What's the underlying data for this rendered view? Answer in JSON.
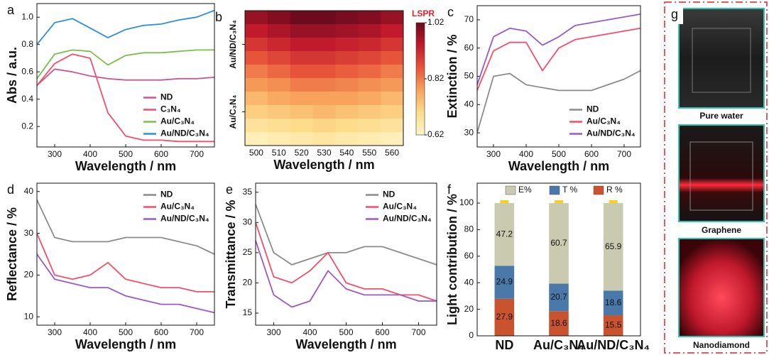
{
  "chart_data": [
    {
      "label": "a",
      "type": "line",
      "xlabel": "Wavelength / nm",
      "ylabel": "Abs / a.u.",
      "xlim": [
        250,
        750
      ],
      "xticks": [
        300,
        400,
        500,
        600,
        700
      ],
      "ylim": [
        0.05,
        1.1
      ],
      "yticks": [
        0.2,
        0.4,
        0.6,
        0.8,
        {
          "value": 1,
          "label": "1.0"
        }
      ],
      "legend": "lower right",
      "x": [
        250,
        300,
        350,
        400,
        450,
        500,
        550,
        600,
        650,
        700,
        750
      ],
      "series": [
        {
          "name": "ND",
          "color": "#c65a94",
          "values": [
            0.5,
            0.62,
            0.6,
            0.57,
            0.55,
            0.54,
            0.54,
            0.54,
            0.55,
            0.55,
            0.56
          ]
        },
        {
          "name": "C₃N₄",
          "color": "#f2506a",
          "values": [
            0.5,
            0.66,
            0.73,
            0.7,
            0.3,
            0.13,
            0.1,
            0.1,
            0.09,
            0.09,
            0.09
          ]
        },
        {
          "name": "Au/C₃N₄",
          "color": "#7bbf4a",
          "values": [
            0.55,
            0.73,
            0.76,
            0.75,
            0.65,
            0.72,
            0.74,
            0.74,
            0.75,
            0.76,
            0.76
          ]
        },
        {
          "name": "Au/ND/C₃N₄",
          "color": "#2e8ee0",
          "values": [
            0.8,
            0.96,
            0.99,
            0.92,
            0.85,
            0.91,
            0.94,
            0.95,
            0.98,
            1.0,
            1.05
          ]
        }
      ]
    },
    {
      "label": "b",
      "type": "heatmap",
      "xlabel": "Wavelength / nm",
      "xlim": [
        495,
        565
      ],
      "xticks": [
        500,
        510,
        520,
        530,
        540,
        550,
        560
      ],
      "x": [
        500,
        510,
        520,
        530,
        540,
        550,
        560
      ],
      "rows": [
        null,
        null,
        "Au/ND/C₃N₄",
        null,
        null,
        null,
        null,
        "Au/C₃N₄",
        null,
        null
      ],
      "z": [
        [
          0.98,
          1.0,
          1.02,
          1.02,
          1.01,
          1.0,
          0.98
        ],
        [
          0.94,
          0.96,
          0.98,
          0.98,
          0.97,
          0.96,
          0.94
        ],
        [
          0.9,
          0.92,
          0.94,
          0.94,
          0.93,
          0.92,
          0.9
        ],
        [
          0.86,
          0.88,
          0.9,
          0.9,
          0.89,
          0.88,
          0.86
        ],
        [
          0.82,
          0.84,
          0.86,
          0.86,
          0.85,
          0.84,
          0.82
        ],
        [
          0.79,
          0.8,
          0.82,
          0.82,
          0.81,
          0.8,
          0.79
        ],
        [
          0.75,
          0.77,
          0.78,
          0.78,
          0.78,
          0.77,
          0.75
        ],
        [
          0.72,
          0.73,
          0.74,
          0.75,
          0.74,
          0.73,
          0.72
        ],
        [
          0.68,
          0.69,
          0.7,
          0.71,
          0.7,
          0.69,
          0.68
        ],
        [
          0.64,
          0.65,
          0.66,
          0.67,
          0.66,
          0.65,
          0.64
        ]
      ],
      "colorbar": {
        "title": "LSPR",
        "lim": [
          0.62,
          1.02
        ],
        "ticks": [
          0.62,
          0.82,
          1.02
        ]
      }
    },
    {
      "label": "c",
      "type": "line",
      "xlabel": "Wavelength / nm",
      "ylabel": "Extinction / %",
      "xlim": [
        250,
        750
      ],
      "xticks": [
        300,
        400,
        500,
        600,
        700
      ],
      "ylim": [
        25,
        75
      ],
      "yticks": [
        30,
        40,
        50,
        60,
        70
      ],
      "legend": "lower right",
      "x": [
        250,
        300,
        350,
        400,
        450,
        500,
        550,
        600,
        650,
        700,
        750
      ],
      "series": [
        {
          "name": "ND",
          "color": "#8c8c8c",
          "values": [
            30,
            50,
            51,
            47,
            46,
            45,
            45,
            45,
            47,
            49,
            52
          ]
        },
        {
          "name": "Au/C₃N₄",
          "color": "#f2506a",
          "values": [
            45,
            59,
            62,
            62,
            52,
            60,
            63,
            64,
            65,
            66,
            67
          ]
        },
        {
          "name": "Au/ND/C₃N₄",
          "color": "#9b59c6",
          "values": [
            47,
            64,
            67,
            66,
            61,
            64,
            68,
            69,
            70,
            71,
            72
          ]
        }
      ]
    },
    {
      "label": "d",
      "type": "line",
      "xlabel": "Wavelength / nm",
      "ylabel": "Reflectance / %",
      "xlim": [
        250,
        750
      ],
      "xticks": [
        300,
        400,
        500,
        600,
        700
      ],
      "ylim": [
        8,
        42
      ],
      "yticks": [
        10,
        20,
        30,
        40
      ],
      "legend": "upper right",
      "x": [
        250,
        300,
        350,
        400,
        450,
        500,
        550,
        600,
        650,
        700,
        750
      ],
      "series": [
        {
          "name": "ND",
          "color": "#8c8c8c",
          "values": [
            38,
            29,
            28,
            28,
            28,
            29,
            29,
            29,
            28,
            27,
            25
          ]
        },
        {
          "name": "Au/C₃N₄",
          "color": "#f2506a",
          "values": [
            30,
            20,
            19,
            20,
            23,
            19,
            18,
            17,
            17,
            16,
            16
          ]
        },
        {
          "name": "Au/ND/C₃N₄",
          "color": "#9b59c6",
          "values": [
            25,
            19,
            18,
            17,
            17,
            15,
            14,
            13,
            13,
            12,
            11
          ]
        }
      ]
    },
    {
      "label": "e",
      "type": "line",
      "xlabel": "Wavelength / nm",
      "ylabel": "Transmittance / %",
      "xlim": [
        250,
        750
      ],
      "xticks": [
        300,
        400,
        500,
        600,
        700
      ],
      "ylim": [
        13,
        36.5
      ],
      "yticks": [
        15,
        20,
        25,
        30,
        35
      ],
      "legend": "upper right",
      "x": [
        250,
        300,
        350,
        400,
        450,
        500,
        550,
        600,
        650,
        700,
        750
      ],
      "series": [
        {
          "name": "ND",
          "color": "#8c8c8c",
          "values": [
            33,
            25,
            23,
            24,
            25,
            25,
            26,
            26,
            25,
            24,
            23
          ]
        },
        {
          "name": "Au/C₃N₄",
          "color": "#f2506a",
          "values": [
            30,
            21,
            20,
            22,
            25,
            20,
            19,
            19,
            18,
            18,
            17
          ]
        },
        {
          "name": "Au/ND/C₃N₄",
          "color": "#9b59c6",
          "values": [
            27,
            18,
            16,
            17,
            22,
            19,
            18,
            18,
            18,
            17,
            17
          ]
        }
      ]
    },
    {
      "label": "f",
      "type": "stacked_bar",
      "ylabel": "Light contribution / %",
      "ylim": [
        0,
        115
      ],
      "yticks": [
        0,
        20,
        40,
        60,
        80,
        100
      ],
      "legend": "upper center",
      "categories": [
        "ND",
        "Au/C₃N₄",
        "Au/ND/C₃N₄"
      ],
      "series": [
        {
          "name": "R %",
          "color": "#c9532e",
          "values": [
            27.9,
            18.6,
            15.5
          ]
        },
        {
          "name": "T %",
          "color": "#4a78a8",
          "values": [
            24.9,
            20.7,
            18.6
          ]
        },
        {
          "name": "E%",
          "color": "#c9caaf",
          "values": [
            47.2,
            60.7,
            65.9
          ]
        }
      ]
    }
  ],
  "photo_panel": {
    "label": "g",
    "captions": [
      "Pure water",
      "Graphene",
      "Nanodiamond"
    ]
  }
}
